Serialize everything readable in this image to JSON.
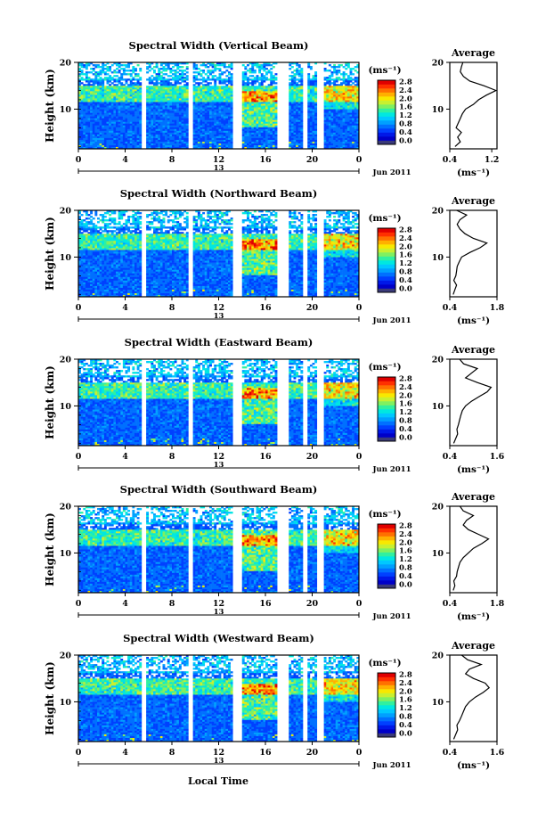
{
  "figure": {
    "footer_xlabel": "Local Time",
    "colorbar_unit": "(ms⁻¹)",
    "colorbar_ticks": [
      "0.0",
      "0.4",
      "0.8",
      "1.2",
      "1.6",
      "2.0",
      "2.4",
      "2.8"
    ],
    "colorbar_colors": [
      "#3a3a7a",
      "#0000c8",
      "#0018e8",
      "#0040ff",
      "#0070ff",
      "#00a0ff",
      "#00c8ff",
      "#00e8e0",
      "#30f0a0",
      "#80f060",
      "#c8f030",
      "#f8e800",
      "#ffb000",
      "#ff7000",
      "#ff3000",
      "#e00000"
    ]
  },
  "chart_data": [
    {
      "type": "heatmap",
      "title": "Spectral Width (Vertical Beam)",
      "ylabel": "Height (km)",
      "y_ticks": [
        "20",
        "10"
      ],
      "x_ticks": [
        "0",
        "4",
        "8",
        "12",
        "16",
        "20",
        "0"
      ],
      "date_mid": "13",
      "date_end": "Jun 2011",
      "xlim": [
        0,
        24
      ],
      "ylim": [
        1.5,
        20
      ],
      "gaps_hours": [
        [
          5.5,
          5.8
        ],
        [
          9.4,
          9.7
        ],
        [
          13.3,
          14.0
        ],
        [
          17.0,
          18.0
        ],
        [
          19.2,
          19.5
        ],
        [
          20.5,
          21.0
        ]
      ],
      "average": {
        "title": "Average",
        "xlabel": "(ms⁻¹)",
        "x_ticks": [
          "0.4",
          "1.2"
        ],
        "xlim": [
          0.4,
          1.3
        ],
        "height_km": [
          2,
          3,
          4,
          5,
          6,
          7,
          8,
          9,
          10,
          11,
          12,
          13,
          14,
          15,
          16,
          17,
          18,
          19,
          20
        ],
        "width_ms": [
          0.5,
          0.6,
          0.55,
          0.62,
          0.52,
          0.56,
          0.6,
          0.64,
          0.7,
          0.85,
          0.95,
          1.1,
          1.28,
          1.05,
          0.78,
          0.66,
          0.6,
          0.62,
          0.65
        ]
      }
    },
    {
      "type": "heatmap",
      "title": "Spectral Width (Northward Beam)",
      "ylabel": "Height (km)",
      "y_ticks": [
        "20",
        "10"
      ],
      "x_ticks": [
        "0",
        "4",
        "8",
        "12",
        "16",
        "20",
        "0"
      ],
      "date_mid": "13",
      "date_end": "Jun 2011",
      "xlim": [
        0,
        24
      ],
      "ylim": [
        1.5,
        20
      ],
      "gaps_hours": [
        [
          5.5,
          5.8
        ],
        [
          9.4,
          9.7
        ],
        [
          13.3,
          14.0
        ],
        [
          17.0,
          18.0
        ],
        [
          19.2,
          19.5
        ],
        [
          20.5,
          21.0
        ]
      ],
      "average": {
        "title": "Average",
        "xlabel": "(ms⁻¹)",
        "x_ticks": [
          "0.4",
          "1.8"
        ],
        "xlim": [
          0.4,
          1.8
        ],
        "height_km": [
          2,
          3,
          4,
          5,
          6,
          7,
          8,
          9,
          10,
          11,
          12,
          13,
          14,
          15,
          16,
          17,
          18,
          19,
          20
        ],
        "width_ms": [
          0.5,
          0.55,
          0.6,
          0.52,
          0.58,
          0.6,
          0.62,
          0.68,
          0.75,
          1.0,
          1.3,
          1.5,
          1.1,
          0.85,
          0.7,
          0.62,
          0.7,
          0.9,
          0.6
        ]
      }
    },
    {
      "type": "heatmap",
      "title": "Spectral Width (Eastward Beam)",
      "ylabel": "Height (km)",
      "y_ticks": [
        "20",
        "10"
      ],
      "x_ticks": [
        "0",
        "4",
        "8",
        "12",
        "16",
        "20",
        "0"
      ],
      "date_mid": "13",
      "date_end": "Jun 2011",
      "xlim": [
        0,
        24
      ],
      "ylim": [
        1.5,
        20
      ],
      "gaps_hours": [
        [
          5.5,
          5.8
        ],
        [
          9.4,
          9.7
        ],
        [
          13.3,
          14.0
        ],
        [
          17.0,
          18.0
        ],
        [
          19.2,
          19.5
        ],
        [
          20.5,
          21.0
        ]
      ],
      "average": {
        "title": "Average",
        "xlabel": "(ms⁻¹)",
        "x_ticks": [
          "0.4",
          "1.6"
        ],
        "xlim": [
          0.4,
          1.6
        ],
        "height_km": [
          2,
          3,
          4,
          5,
          6,
          7,
          8,
          9,
          10,
          11,
          12,
          13,
          14,
          15,
          16,
          17,
          18,
          19,
          20
        ],
        "width_ms": [
          0.5,
          0.55,
          0.6,
          0.58,
          0.62,
          0.65,
          0.68,
          0.72,
          0.8,
          0.95,
          1.15,
          1.35,
          1.45,
          1.1,
          0.8,
          0.95,
          1.1,
          0.75,
          0.65
        ]
      }
    },
    {
      "type": "heatmap",
      "title": "Spectral Width (Southward Beam)",
      "ylabel": "Height (km)",
      "y_ticks": [
        "20",
        "10"
      ],
      "x_ticks": [
        "0",
        "4",
        "8",
        "12",
        "16",
        "20",
        "0"
      ],
      "date_mid": "13",
      "date_end": "Jun 2011",
      "xlim": [
        0,
        24
      ],
      "ylim": [
        1.5,
        20
      ],
      "gaps_hours": [
        [
          5.5,
          5.8
        ],
        [
          9.4,
          9.7
        ],
        [
          13.3,
          14.0
        ],
        [
          17.0,
          18.0
        ],
        [
          19.2,
          19.5
        ],
        [
          20.5,
          21.0
        ]
      ],
      "average": {
        "title": "Average",
        "xlabel": "(ms⁻¹)",
        "x_ticks": [
          "0.4",
          "1.8"
        ],
        "xlim": [
          0.4,
          1.8
        ],
        "height_km": [
          2,
          3,
          4,
          5,
          6,
          7,
          8,
          9,
          10,
          11,
          12,
          13,
          14,
          15,
          16,
          17,
          18,
          19,
          20
        ],
        "width_ms": [
          0.5,
          0.55,
          0.52,
          0.6,
          0.62,
          0.66,
          0.7,
          0.8,
          0.95,
          1.1,
          1.35,
          1.55,
          1.25,
          0.95,
          0.8,
          0.9,
          1.1,
          0.8,
          0.7
        ]
      }
    },
    {
      "type": "heatmap",
      "title": "Spectral Width (Westward Beam)",
      "ylabel": "Height (km)",
      "y_ticks": [
        "20",
        "10"
      ],
      "x_ticks": [
        "0",
        "4",
        "8",
        "12",
        "16",
        "20",
        "0"
      ],
      "date_mid": "13",
      "date_end": "Jun 2011",
      "xlim": [
        0,
        24
      ],
      "ylim": [
        1.5,
        20
      ],
      "gaps_hours": [
        [
          5.5,
          5.8
        ],
        [
          9.4,
          9.7
        ],
        [
          13.3,
          14.0
        ],
        [
          17.0,
          18.0
        ],
        [
          19.2,
          19.5
        ],
        [
          20.5,
          21.0
        ]
      ],
      "average": {
        "title": "Average",
        "xlabel": "(ms⁻¹)",
        "x_ticks": [
          "0.4",
          "1.6"
        ],
        "xlim": [
          0.4,
          1.6
        ],
        "height_km": [
          2,
          3,
          4,
          5,
          6,
          7,
          8,
          9,
          10,
          11,
          12,
          13,
          14,
          15,
          16,
          17,
          18,
          19,
          20
        ],
        "width_ms": [
          0.5,
          0.55,
          0.6,
          0.58,
          0.65,
          0.7,
          0.75,
          0.8,
          0.9,
          1.05,
          1.25,
          1.4,
          1.3,
          1.0,
          0.8,
          0.9,
          1.2,
          0.85,
          0.7
        ]
      }
    }
  ]
}
